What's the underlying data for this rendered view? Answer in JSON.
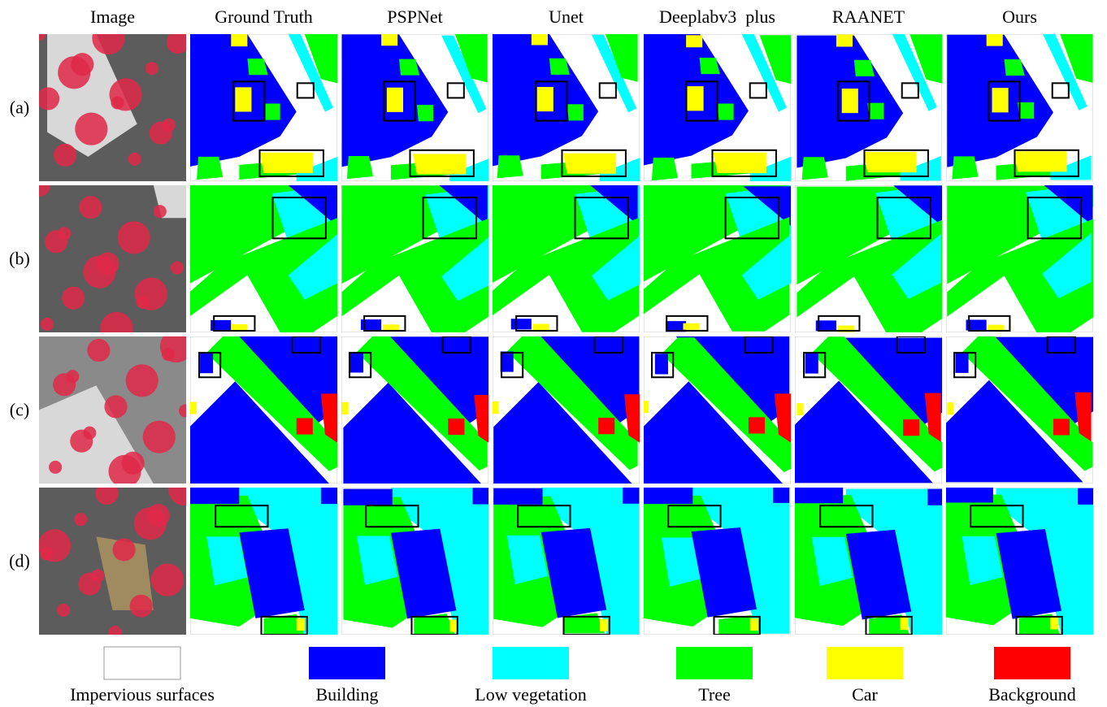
{
  "columns": [
    "Image",
    "Ground Truth",
    "PSPNet",
    "Unet",
    "Deeplabv3  plus",
    "RAANET",
    "Ours"
  ],
  "rows": [
    "(a)",
    "(b)",
    "(c)",
    "(d)"
  ],
  "legend": [
    {
      "name": "Impervious surfaces",
      "color": "#ffffff"
    },
    {
      "name": "Building",
      "color": "#0000ff"
    },
    {
      "name": "Low vegetation",
      "color": "#00ffff"
    },
    {
      "name": "Tree",
      "color": "#00ff00"
    },
    {
      "name": "Car",
      "color": "#ffff00"
    },
    {
      "name": "Background",
      "color": "#ff0000"
    }
  ]
}
